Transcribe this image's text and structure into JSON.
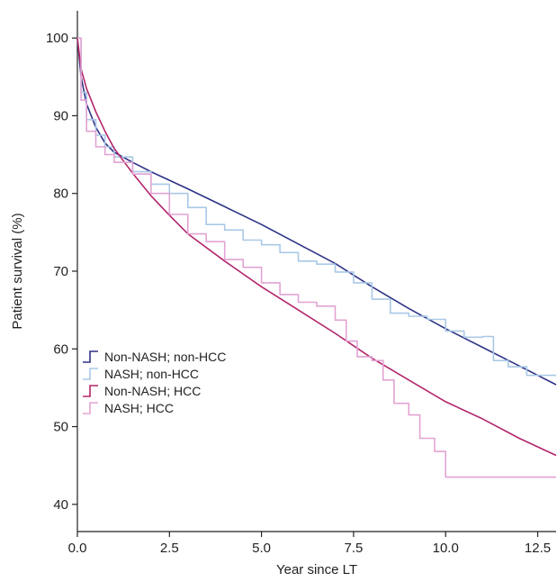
{
  "chart_data": {
    "type": "line",
    "xlabel": "Year since LT",
    "ylabel": "Patient survival (%)",
    "xlim": [
      0,
      13
    ],
    "ylim": [
      36.5,
      103.5
    ],
    "xticks": [
      0,
      2.5,
      5,
      7.5,
      10,
      12.5
    ],
    "xtick_labels": [
      "0.0",
      "2.5",
      "5.0",
      "7.5",
      "10.0",
      "12.5"
    ],
    "yticks": [
      40,
      50,
      60,
      70,
      80,
      90,
      100
    ],
    "ytick_labels": [
      "40",
      "50",
      "60",
      "70",
      "80",
      "90",
      "100"
    ],
    "grid": false,
    "legend_position": "lower-left",
    "series": [
      {
        "name": "Non-NASH; non-HCC",
        "color": "#2e3387",
        "step": false,
        "x": [
          0,
          0.1,
          0.25,
          0.5,
          0.75,
          1,
          1.5,
          2,
          2.5,
          3,
          4,
          5,
          6,
          7,
          8,
          9,
          10,
          11,
          12,
          13
        ],
        "y": [
          100,
          95,
          91.5,
          88.5,
          86.5,
          85.3,
          84,
          82.8,
          81.7,
          80.6,
          78.3,
          76,
          73.5,
          71,
          68,
          65.2,
          62.6,
          60.2,
          57.8,
          55.4
        ]
      },
      {
        "name": "NASH; non-HCC",
        "color": "#a9c8e6",
        "step": true,
        "x": [
          0,
          0.1,
          0.25,
          0.5,
          0.75,
          1,
          1.5,
          2,
          2.5,
          3,
          3.5,
          4,
          4.5,
          5,
          5.5,
          6,
          6.5,
          7,
          7.5,
          8,
          8.5,
          9,
          9.5,
          10,
          10.5,
          11,
          11.3,
          11.7,
          12.2,
          13
        ],
        "y": [
          100,
          93,
          89.5,
          87.5,
          86,
          84.7,
          82.8,
          81.2,
          80,
          78.2,
          76,
          75.3,
          74,
          73.4,
          72.4,
          71.3,
          70.9,
          69.9,
          68.5,
          66.4,
          64.6,
          64.2,
          63.8,
          62.3,
          61.5,
          61.6,
          58.5,
          57.7,
          56.6,
          56.6
        ]
      },
      {
        "name": "Non-NASH; HCC",
        "color": "#b3256a",
        "step": false,
        "x": [
          0,
          0.1,
          0.25,
          0.5,
          0.75,
          1,
          1.5,
          2,
          2.5,
          3,
          4,
          5,
          6,
          7,
          8,
          9,
          10,
          11,
          12,
          13
        ],
        "y": [
          100,
          96,
          93.5,
          90.5,
          88,
          85.8,
          82.6,
          79.7,
          77.2,
          74.8,
          71.3,
          68,
          65,
          62,
          58.8,
          56,
          53.2,
          51,
          48.5,
          46.3
        ]
      },
      {
        "name": "NASH; HCC",
        "color": "#e2a3d3",
        "step": true,
        "x": [
          0,
          0.1,
          0.25,
          0.5,
          0.75,
          1,
          1.5,
          2,
          2.5,
          3,
          3.5,
          4,
          4.5,
          5,
          5.5,
          6,
          6.5,
          7,
          7.3,
          7.6,
          8,
          8.3,
          8.6,
          9,
          9.3,
          9.7,
          10,
          10.5,
          11,
          12,
          13
        ],
        "y": [
          100,
          92,
          88,
          86,
          85,
          84,
          82.5,
          80,
          77.3,
          74.8,
          73.8,
          71.5,
          70.5,
          68.5,
          67,
          66,
          65.5,
          63.7,
          61,
          59,
          58.5,
          56,
          53,
          51.5,
          48.5,
          46.8,
          43.5,
          43.5,
          43.5,
          43.5,
          43.5
        ]
      }
    ]
  }
}
